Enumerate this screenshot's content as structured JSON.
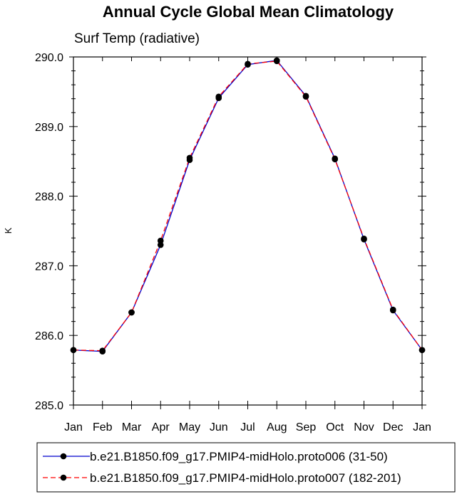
{
  "chart_data": {
    "type": "line",
    "title": "Annual Cycle Global Mean Climatology",
    "subtitle": "Surf Temp (radiative)",
    "xlabel": "",
    "ylabel": "K",
    "categories": [
      "Jan",
      "Feb",
      "Mar",
      "Apr",
      "May",
      "Jun",
      "Jul",
      "Aug",
      "Sep",
      "Oct",
      "Nov",
      "Dec",
      "Jan"
    ],
    "ylim": [
      285.0,
      290.0
    ],
    "yticks": [
      "285.0",
      "286.0",
      "287.0",
      "288.0",
      "289.0",
      "290.0"
    ],
    "series": [
      {
        "name": "b.e21.B1850.f09_g17.PMIP4-midHolo.proto006 (31-50)",
        "color": "#0000cc",
        "dash": "solid",
        "values": [
          285.79,
          285.77,
          286.33,
          287.3,
          288.52,
          289.41,
          289.89,
          289.95,
          289.44,
          288.54,
          287.38,
          286.36,
          285.79
        ]
      },
      {
        "name": "b.e21.B1850.f09_g17.PMIP4-midHolo.proto007 (182-201)",
        "color": "#ff0000",
        "dash": "dashed",
        "values": [
          285.79,
          285.78,
          286.33,
          287.36,
          288.55,
          289.43,
          289.9,
          289.94,
          289.43,
          288.53,
          287.39,
          286.37,
          285.79
        ]
      }
    ]
  }
}
